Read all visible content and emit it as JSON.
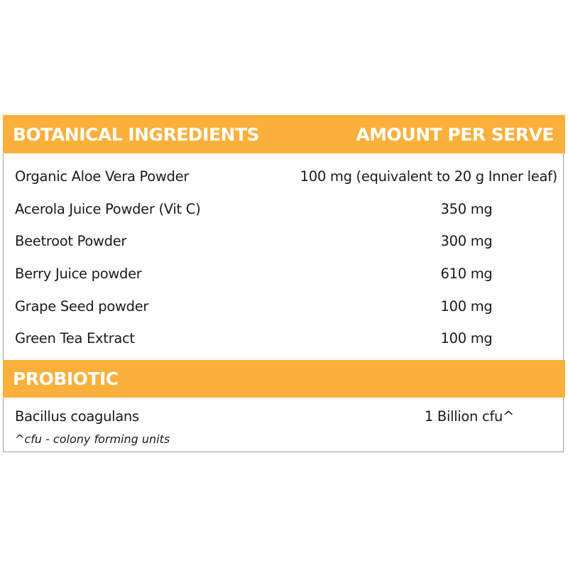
{
  "header": {
    "col_ingredient": "BOTANICAL INGREDIENTS",
    "col_amount": "AMOUNT PER SERVE",
    "color": "#fbb03b"
  },
  "botanicals": [
    {
      "name": "Organic Aloe Vera Powder",
      "amount": "100 mg (equivalent to 20 g Inner leaf)"
    },
    {
      "name": "Acerola Juice Powder (Vit C)",
      "amount": "350 mg"
    },
    {
      "name": "Beetroot Powder",
      "amount": "300 mg"
    },
    {
      "name": "Berry Juice powder",
      "amount": "610 mg"
    },
    {
      "name": "Grape Seed powder",
      "amount": "100 mg"
    },
    {
      "name": "Green Tea Extract",
      "amount": "100 mg"
    }
  ],
  "probiotic": {
    "title": "PROBIOTIC",
    "name": "Bacillus coagulans",
    "amount": "1 Billion cfu^",
    "footnote": "^cfu - colony forming units"
  }
}
